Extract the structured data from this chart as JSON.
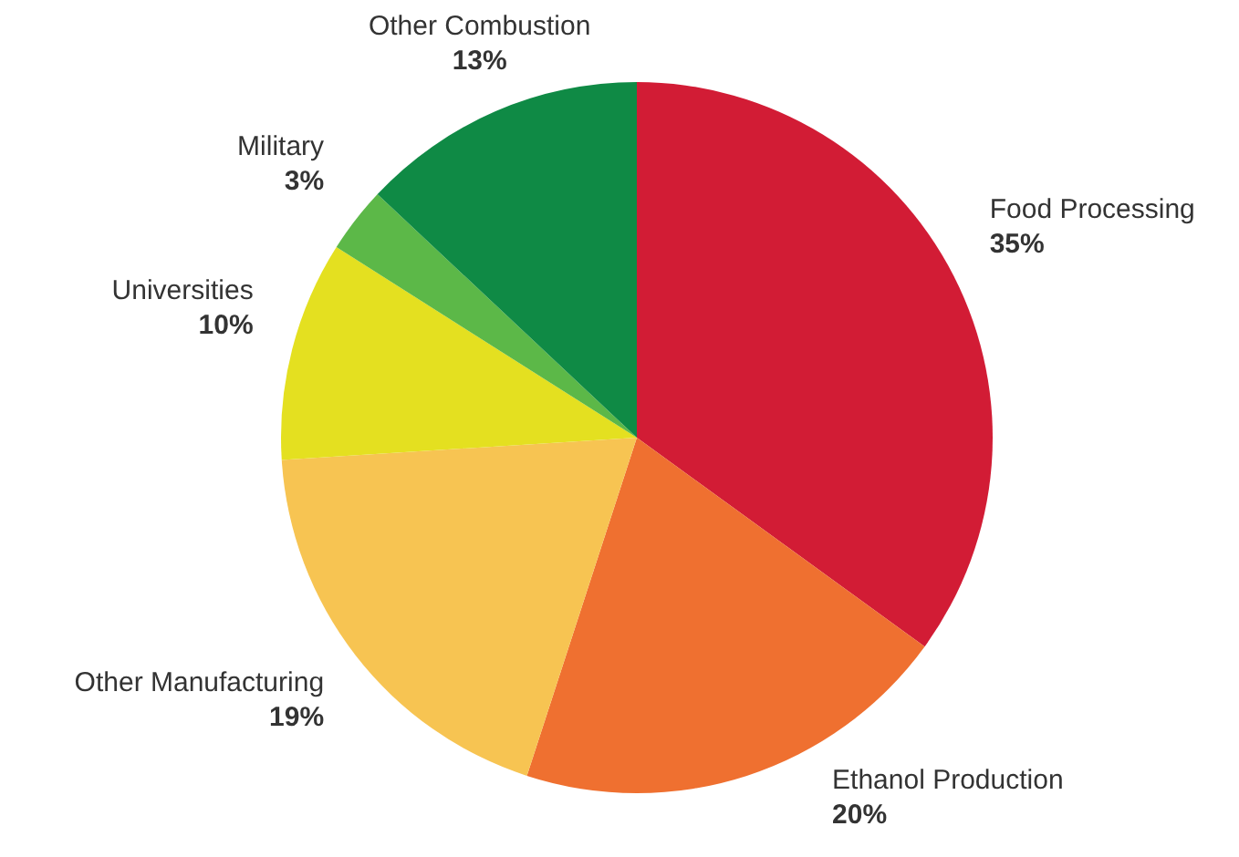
{
  "chart_data": {
    "type": "pie",
    "categories": [
      "Food Processing",
      "Ethanol Production",
      "Other Manufacturing",
      "Universities",
      "Military",
      "Other Combustion"
    ],
    "values": [
      35,
      20,
      19,
      10,
      3,
      13
    ],
    "value_labels": [
      "35%",
      "20%",
      "19%",
      "10%",
      "3%",
      "13%"
    ],
    "colors": [
      "#d21c35",
      "#ef7030",
      "#f7c452",
      "#e4e020",
      "#5cb848",
      "#0f8a45"
    ]
  }
}
